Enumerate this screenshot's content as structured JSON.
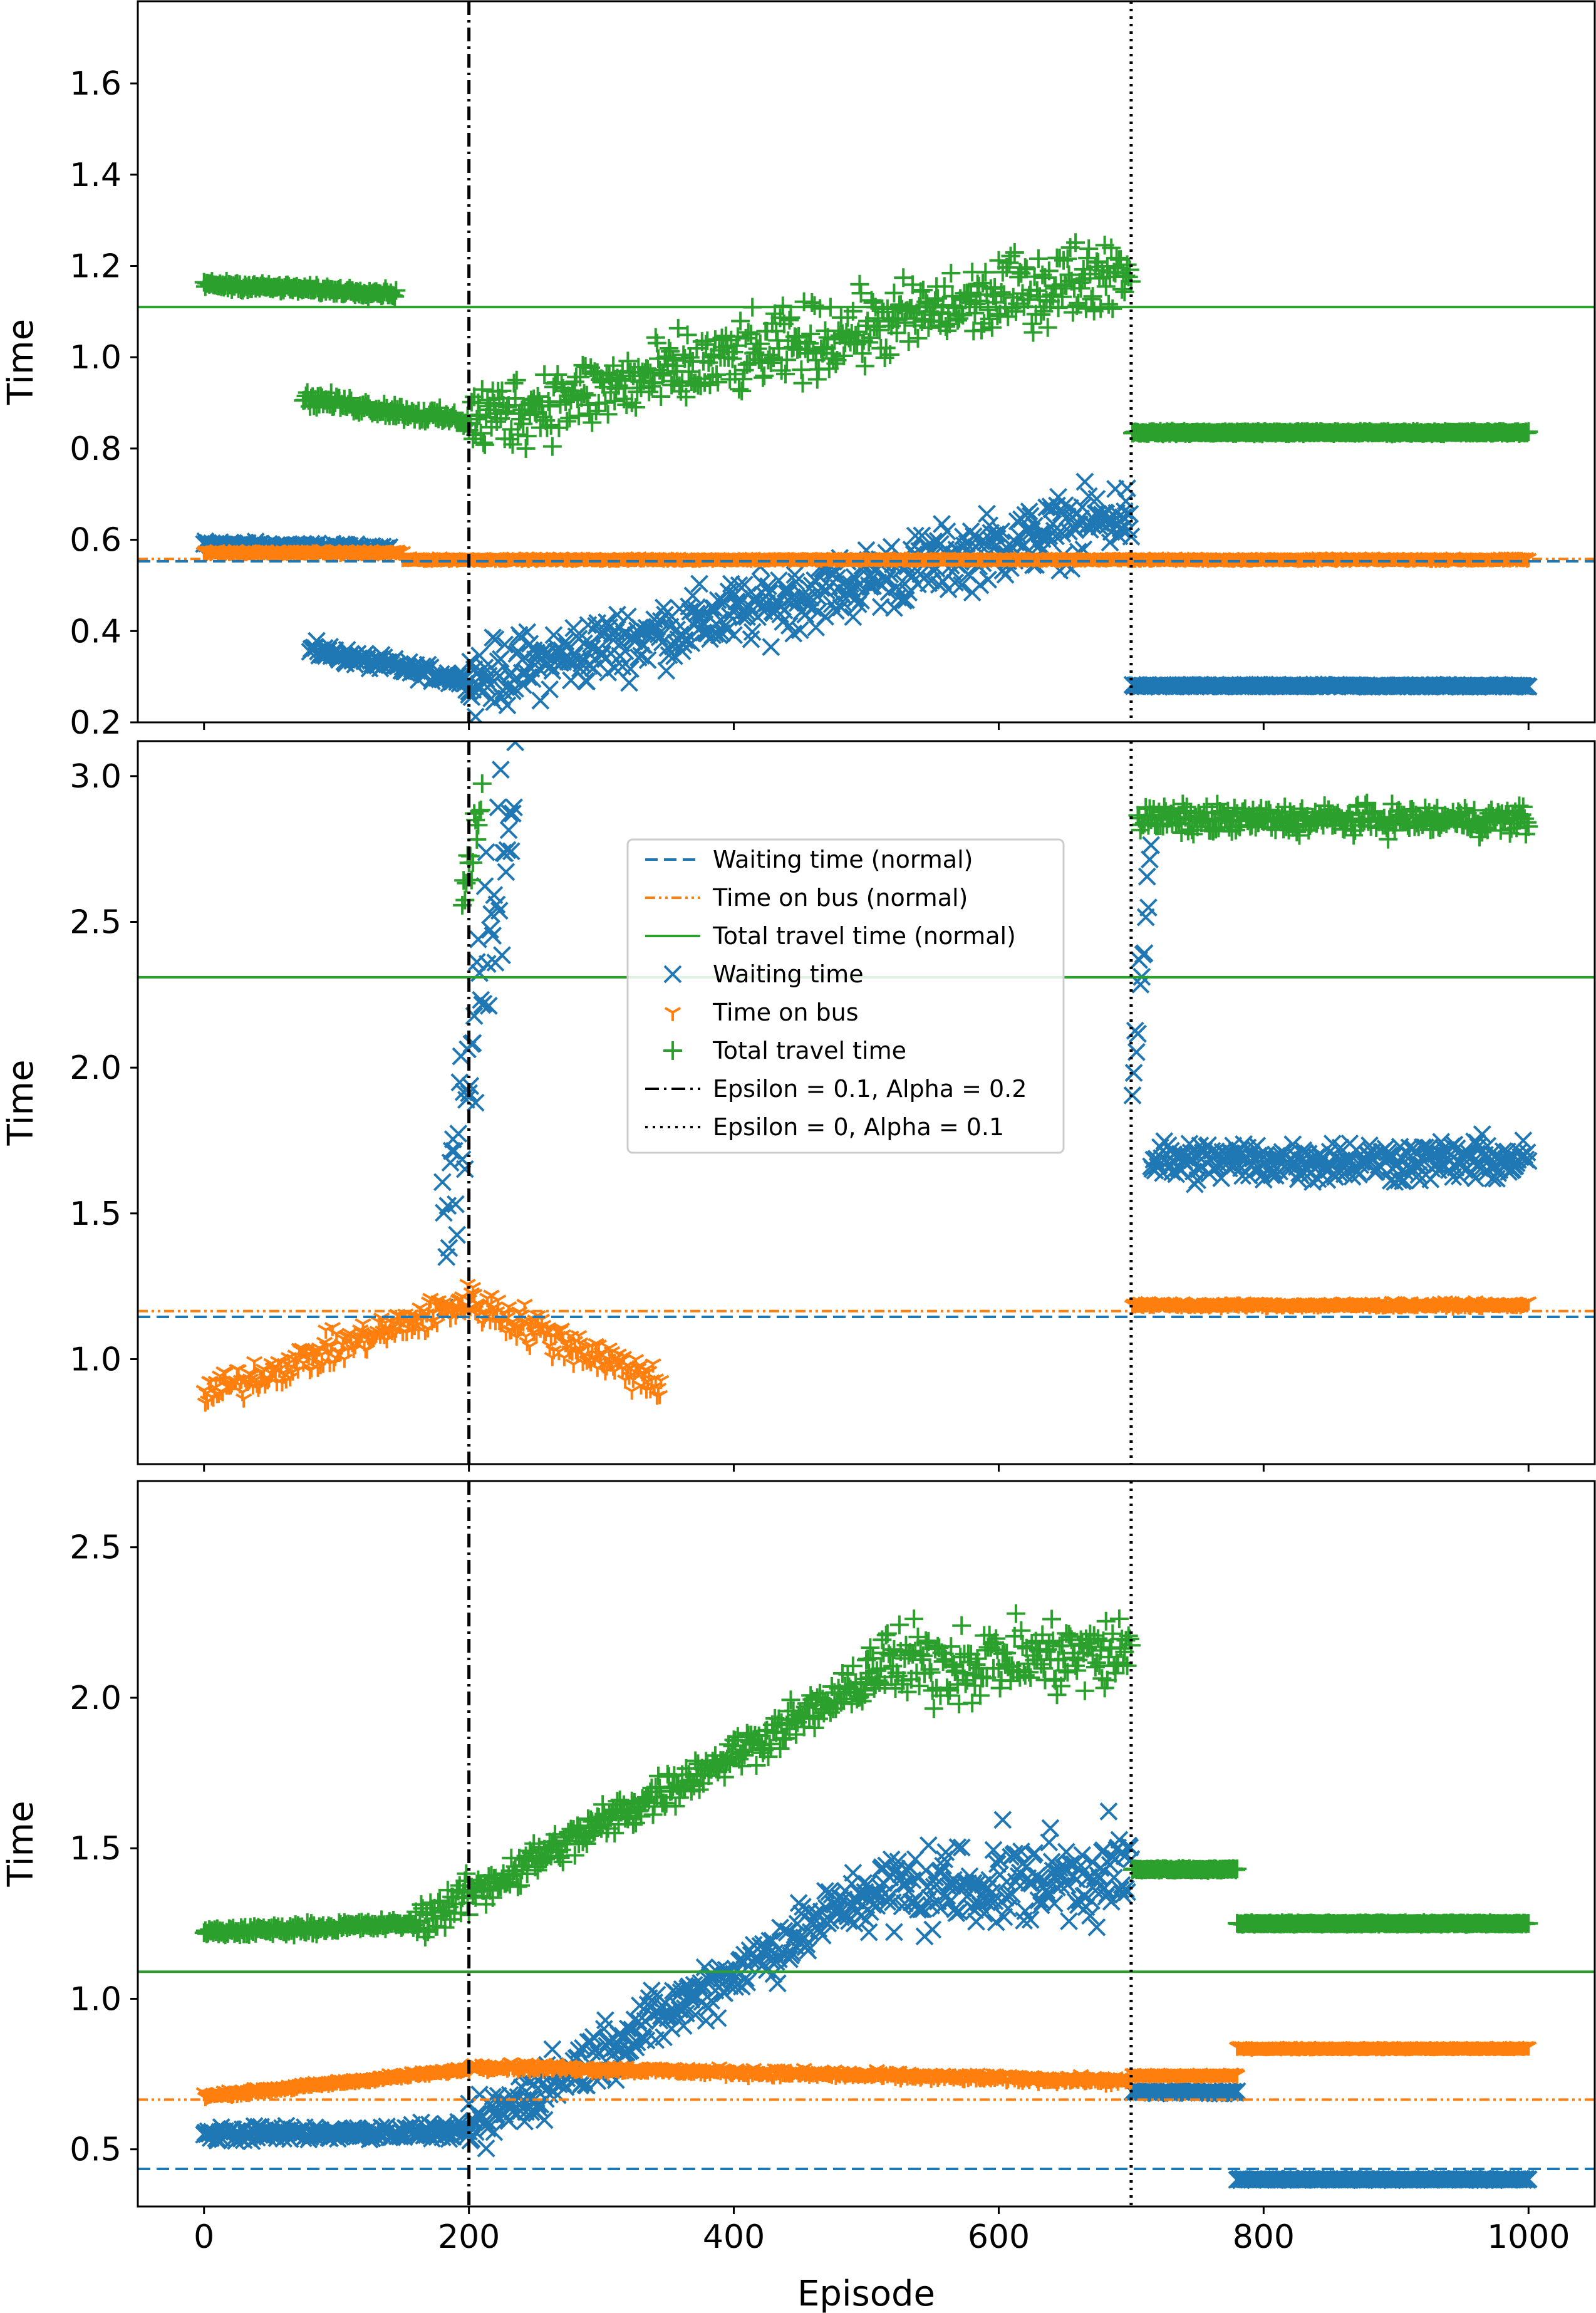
{
  "chart_data": [
    {
      "panel": "top",
      "type": "scatter",
      "ylabel": "Time",
      "xlim": [
        -50,
        1050
      ],
      "ylim": [
        0.2,
        1.78
      ],
      "yticks": [
        "0.2",
        "0.4",
        "0.6",
        "0.8",
        "1.0",
        "1.2",
        "1.4",
        "1.6"
      ],
      "reference_lines": {
        "waiting_normal": 0.553,
        "bus_normal": 0.558,
        "total_normal": 1.11
      },
      "series": [
        {
          "name": "Waiting time",
          "segments": [
            {
              "x0": 0,
              "x1": 140,
              "y0": 0.59,
              "y1": 0.58,
              "noise": 0.01
            },
            {
              "x0": 80,
              "x1": 200,
              "y0": 0.36,
              "y1": 0.29,
              "noise": 0.02
            },
            {
              "x0": 200,
              "x1": 700,
              "y0": 0.29,
              "y1": 0.66,
              "noise": 0.09
            },
            {
              "x0": 701,
              "x1": 1000,
              "y0": 0.28,
              "y1": 0.28,
              "noise": 0.003
            }
          ]
        },
        {
          "name": "Time on bus",
          "segments": [
            {
              "x0": 0,
              "x1": 150,
              "y0": 0.575,
              "y1": 0.575,
              "noise": 0.005
            },
            {
              "x0": 150,
              "x1": 1000,
              "y0": 0.56,
              "y1": 0.56,
              "noise": 0.003
            }
          ]
        },
        {
          "name": "Total travel time",
          "segments": [
            {
              "x0": 0,
              "x1": 145,
              "y0": 1.16,
              "y1": 1.14,
              "noise": 0.01
            },
            {
              "x0": 75,
              "x1": 200,
              "y0": 0.91,
              "y1": 0.86,
              "noise": 0.02
            },
            {
              "x0": 200,
              "x1": 700,
              "y0": 0.86,
              "y1": 1.2,
              "noise": 0.1
            },
            {
              "x0": 701,
              "x1": 1000,
              "y0": 0.835,
              "y1": 0.835,
              "noise": 0.003
            }
          ]
        }
      ]
    },
    {
      "panel": "middle",
      "type": "scatter",
      "ylabel": "Time",
      "xlim": [
        -50,
        1050
      ],
      "ylim": [
        0.64,
        3.12
      ],
      "yticks": [
        "1.0",
        "1.5",
        "2.0",
        "2.5",
        "3.0"
      ],
      "reference_lines": {
        "waiting_normal": 1.145,
        "bus_normal": 1.165,
        "total_normal": 2.31
      },
      "series": [
        {
          "name": "Waiting time",
          "segments": [
            {
              "x0": 180,
              "x1": 235,
              "y0": 1.45,
              "y1": 2.95,
              "noise": 0.4
            },
            {
              "x0": 701,
              "x1": 715,
              "y0": 2.0,
              "y1": 2.75,
              "noise": 0.2
            },
            {
              "x0": 715,
              "x1": 1000,
              "y0": 1.68,
              "y1": 1.68,
              "noise": 0.09
            }
          ]
        },
        {
          "name": "Time on bus",
          "segments": [
            {
              "x0": 0,
              "x1": 200,
              "y0": 0.88,
              "y1": 1.2,
              "noise": 0.07
            },
            {
              "x0": 200,
              "x1": 345,
              "y0": 1.2,
              "y1": 0.92,
              "noise": 0.08
            },
            {
              "x0": 701,
              "x1": 1000,
              "y0": 1.19,
              "y1": 1.19,
              "noise": 0.01
            }
          ]
        },
        {
          "name": "Total travel time",
          "segments": [
            {
              "x0": 195,
              "x1": 210,
              "y0": 2.6,
              "y1": 2.95,
              "noise": 0.15
            },
            {
              "x0": 705,
              "x1": 1000,
              "y0": 2.85,
              "y1": 2.85,
              "noise": 0.06
            }
          ]
        }
      ]
    },
    {
      "panel": "bottom",
      "type": "scatter",
      "ylabel": "Time",
      "xlabel": "Episode",
      "xlim": [
        -50,
        1050
      ],
      "ylim": [
        0.31,
        2.72
      ],
      "xticks": [
        "0",
        "200",
        "400",
        "600",
        "800",
        "1000"
      ],
      "yticks": [
        "0.5",
        "1.0",
        "1.5",
        "2.0",
        "2.5"
      ],
      "reference_lines": {
        "waiting_normal": 0.435,
        "bus_normal": 0.665,
        "total_normal": 1.09
      },
      "series": [
        {
          "name": "Waiting time",
          "segments": [
            {
              "x0": 0,
              "x1": 200,
              "y0": 0.55,
              "y1": 0.56,
              "noise": 0.03
            },
            {
              "x0": 200,
              "x1": 500,
              "y0": 0.56,
              "y1": 1.35,
              "noise": 0.12
            },
            {
              "x0": 500,
              "x1": 700,
              "y0": 1.35,
              "y1": 1.42,
              "noise": 0.18
            },
            {
              "x0": 701,
              "x1": 780,
              "y0": 0.69,
              "y1": 0.69,
              "noise": 0.005
            },
            {
              "x0": 780,
              "x1": 1000,
              "y0": 0.4,
              "y1": 0.4,
              "noise": 0.003
            }
          ]
        },
        {
          "name": "Time on bus",
          "segments": [
            {
              "x0": 0,
              "x1": 200,
              "y0": 0.68,
              "y1": 0.77,
              "noise": 0.01
            },
            {
              "x0": 200,
              "x1": 700,
              "y0": 0.78,
              "y1": 0.73,
              "noise": 0.015
            },
            {
              "x0": 701,
              "x1": 780,
              "y0": 0.75,
              "y1": 0.75,
              "noise": 0.004
            },
            {
              "x0": 780,
              "x1": 1000,
              "y0": 0.84,
              "y1": 0.84,
              "noise": 0.003
            }
          ]
        },
        {
          "name": "Total travel time",
          "segments": [
            {
              "x0": 0,
              "x1": 160,
              "y0": 1.22,
              "y1": 1.25,
              "noise": 0.02
            },
            {
              "x0": 160,
              "x1": 500,
              "y0": 1.25,
              "y1": 2.05,
              "noise": 0.08
            },
            {
              "x0": 500,
              "x1": 700,
              "y0": 2.1,
              "y1": 2.15,
              "noise": 0.16
            },
            {
              "x0": 701,
              "x1": 780,
              "y0": 1.43,
              "y1": 1.43,
              "noise": 0.004
            },
            {
              "x0": 780,
              "x1": 1000,
              "y0": 1.25,
              "y1": 1.25,
              "noise": 0.003
            }
          ]
        }
      ]
    }
  ],
  "vlines": {
    "epsilon01_x": 200,
    "epsilon0_x": 700
  },
  "legend": {
    "position": "center (middle panel)",
    "entries": [
      "Waiting time (normal)",
      "Time on bus (normal)",
      "Total travel time (normal)",
      "Waiting time",
      "Time on bus",
      "Total travel time",
      "Epsilon = 0.1, Alpha = 0.2",
      "Epsilon = 0, Alpha = 0.1"
    ]
  },
  "colors": {
    "waiting": "#1f77b4",
    "bus": "#ff7f0e",
    "total": "#2ca02c",
    "vline": "#000000"
  }
}
